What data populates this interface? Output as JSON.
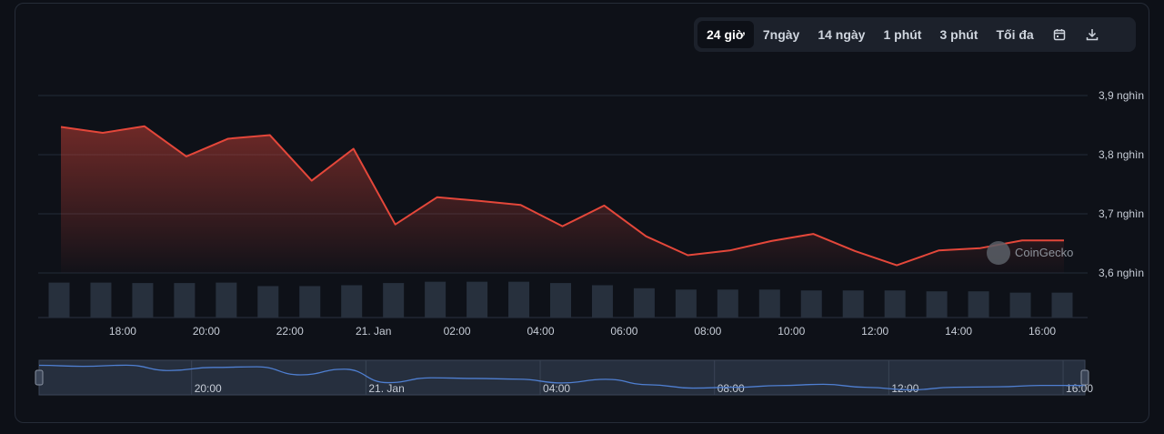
{
  "toolbar": {
    "tabs": [
      "24 giờ",
      "7ngày",
      "14 ngày",
      "1 phút",
      "3 phút",
      "Tối đa"
    ],
    "active_tab": 0,
    "calendar_icon": "calendar-icon",
    "download_icon": "download-icon"
  },
  "watermark": "CoinGecko",
  "colors": {
    "line": "#e4473a",
    "volume": "#27303d",
    "navigator_line": "#4f7fd1",
    "navigator_bg": "#262f3e"
  },
  "chart_data": {
    "type": "line",
    "x_unit": "hours",
    "x_start": "20 Jan 16:30",
    "x": [
      0,
      1,
      2,
      3,
      4,
      5,
      6,
      7,
      8,
      9,
      10,
      11,
      12,
      13,
      14,
      15,
      16,
      17,
      18,
      19,
      20,
      21,
      22,
      23,
      24
    ],
    "series": [
      {
        "values": [
          3.847,
          3.837,
          3.848,
          3.797,
          3.827,
          3.833,
          3.756,
          3.81,
          3.682,
          3.728,
          3.722,
          3.715,
          3.679,
          3.714,
          3.662,
          3.63,
          3.638,
          3.654,
          3.666,
          3.637,
          3.613,
          3.638,
          3.642,
          3.655,
          3.655
        ]
      }
    ],
    "volume": [
      0.8,
      0.8,
      0.79,
      0.79,
      0.8,
      0.72,
      0.72,
      0.74,
      0.79,
      0.82,
      0.82,
      0.82,
      0.79,
      0.74,
      0.67,
      0.64,
      0.64,
      0.64,
      0.62,
      0.62,
      0.62,
      0.6,
      0.6,
      0.57,
      0.57
    ],
    "yticks": [
      {
        "value": 3.9,
        "label": "3,9 nghìn"
      },
      {
        "value": 3.8,
        "label": "3,8 nghìn"
      },
      {
        "value": 3.7,
        "label": "3,7 nghìn"
      },
      {
        "value": 3.6,
        "label": "3,6 nghìn"
      }
    ],
    "xticks": [
      {
        "value": 1.5,
        "label": "18:00"
      },
      {
        "value": 3.5,
        "label": "20:00"
      },
      {
        "value": 5.5,
        "label": "22:00"
      },
      {
        "value": 7.5,
        "label": "21. Jan"
      },
      {
        "value": 9.5,
        "label": "02:00"
      },
      {
        "value": 11.5,
        "label": "04:00"
      },
      {
        "value": 13.5,
        "label": "06:00"
      },
      {
        "value": 15.5,
        "label": "08:00"
      },
      {
        "value": 17.5,
        "label": "10:00"
      },
      {
        "value": 19.5,
        "label": "12:00"
      },
      {
        "value": 21.5,
        "label": "14:00"
      },
      {
        "value": 23.5,
        "label": "16:00"
      }
    ],
    "ylim": [
      3.6,
      3.9
    ],
    "navigator_ticks": [
      {
        "value": 3.5,
        "label": "20:00"
      },
      {
        "value": 7.5,
        "label": "21. Jan"
      },
      {
        "value": 11.5,
        "label": "04:00"
      },
      {
        "value": 15.5,
        "label": "08:00"
      },
      {
        "value": 19.5,
        "label": "12:00"
      },
      {
        "value": 23.5,
        "label": "16:00"
      }
    ],
    "grid": true,
    "legend": "none"
  }
}
